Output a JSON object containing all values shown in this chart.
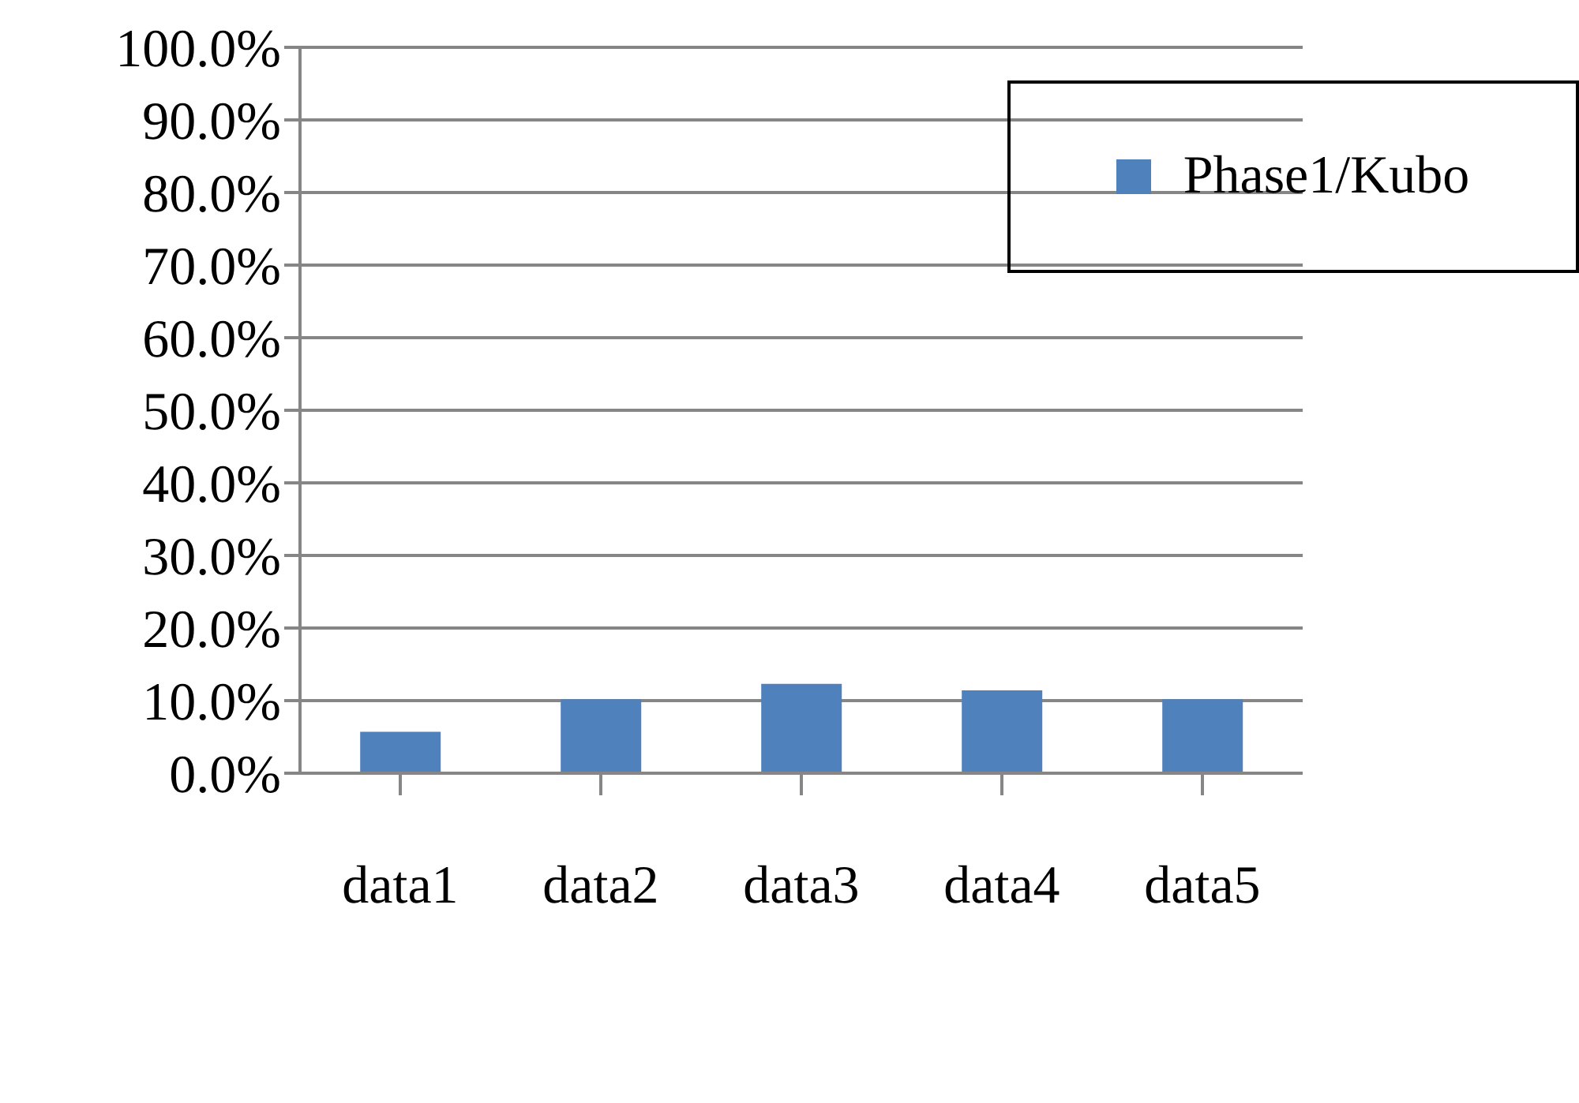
{
  "chart_data": {
    "type": "bar",
    "categories": [
      "data1",
      "data2",
      "data3",
      "data4",
      "data5"
    ],
    "series": [
      {
        "name": "Phase1/Kubo",
        "color": "#4f81bd",
        "values": [
          5.7,
          10.2,
          12.3,
          11.4,
          10.2
        ]
      }
    ],
    "ylim": [
      0,
      100
    ],
    "yticks": [
      {
        "value": 0,
        "label": "0.0%"
      },
      {
        "value": 10,
        "label": "10.0%"
      },
      {
        "value": 20,
        "label": "20.0%"
      },
      {
        "value": 30,
        "label": "30.0%"
      },
      {
        "value": 40,
        "label": "40.0%"
      },
      {
        "value": 50,
        "label": "50.0%"
      },
      {
        "value": 60,
        "label": "60.0%"
      },
      {
        "value": 70,
        "label": "70.0%"
      },
      {
        "value": 80,
        "label": "80.0%"
      },
      {
        "value": 90,
        "label": "90.0%"
      },
      {
        "value": 100,
        "label": "100.0%"
      }
    ],
    "grid": "y",
    "legend": "top right"
  }
}
